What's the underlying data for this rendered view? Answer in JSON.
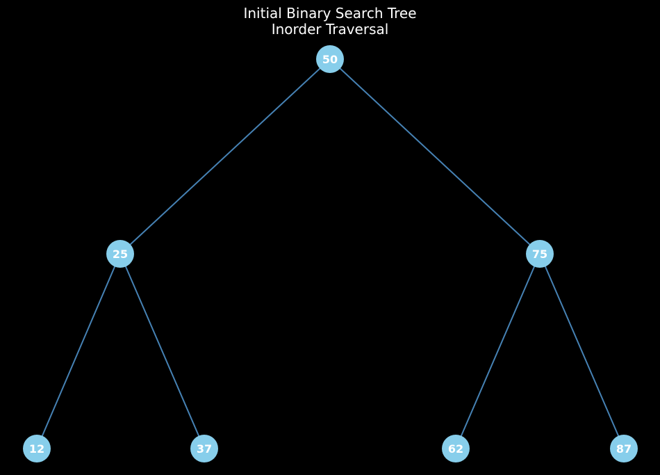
{
  "title": {
    "line1": "Initial Binary Search Tree",
    "line2": "Inorder Traversal"
  },
  "colors": {
    "background": "#000000",
    "node_fill": "#87ceeb",
    "edge": "#4682b4",
    "text": "#ffffff"
  },
  "tree": {
    "nodes": [
      {
        "id": "50",
        "label": "50"
      },
      {
        "id": "25",
        "label": "25"
      },
      {
        "id": "75",
        "label": "75"
      },
      {
        "id": "12",
        "label": "12"
      },
      {
        "id": "37",
        "label": "37"
      },
      {
        "id": "62",
        "label": "62"
      },
      {
        "id": "87",
        "label": "87"
      }
    ],
    "edges": [
      {
        "from": "50",
        "to": "25"
      },
      {
        "from": "50",
        "to": "75"
      },
      {
        "from": "25",
        "to": "12"
      },
      {
        "from": "25",
        "to": "37"
      },
      {
        "from": "75",
        "to": "62"
      },
      {
        "from": "75",
        "to": "87"
      }
    ]
  }
}
